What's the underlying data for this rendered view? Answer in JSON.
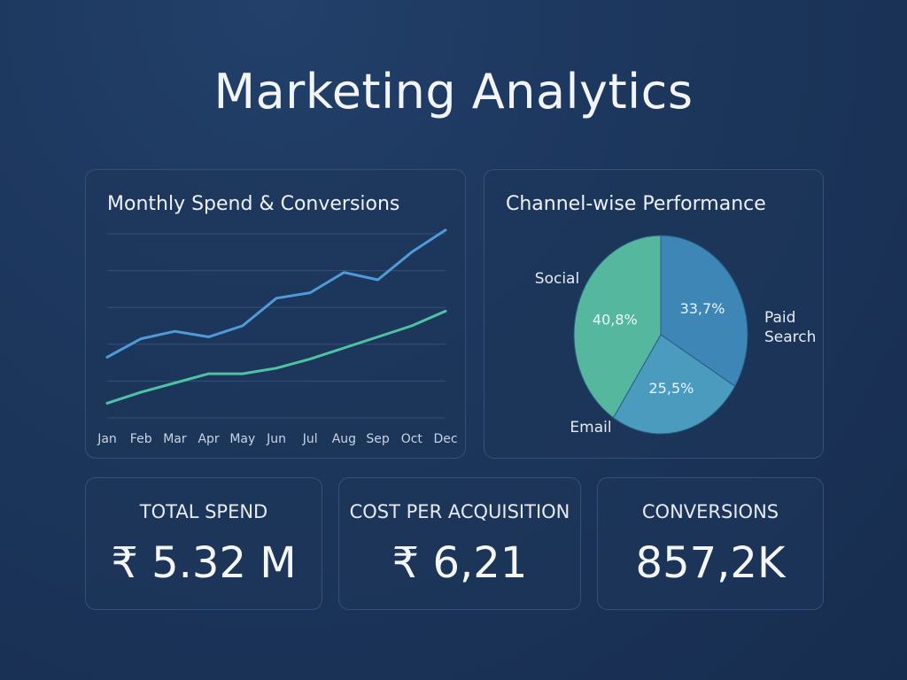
{
  "title": "Marketing Analytics",
  "colors": {
    "background": "#1c365c",
    "spend_line": "#4f9ad8",
    "conversions_line": "#4ec3a4",
    "pie_social": "#55b89e",
    "pie_paid_search": "#3d86b6",
    "pie_email": "#4a9bbe"
  },
  "kpis": [
    {
      "label": "TOTAL SPEND",
      "value": "₹ 5.32 M"
    },
    {
      "label": "COST PER ACQUISITION",
      "value": "₹ 6,21"
    },
    {
      "label": "CONVERSIONS",
      "value": "857,2K"
    }
  ],
  "chart_data": [
    {
      "type": "line",
      "title": "Monthly Spend & Conversions",
      "categories": [
        "Jan",
        "Feb",
        "Mar",
        "Apr",
        "May",
        "Jun",
        "Jul",
        "Aug",
        "Sep",
        "Oct",
        "Dec"
      ],
      "ylim": [
        0,
        5
      ],
      "grid": true,
      "series": [
        {
          "key": "spend",
          "values": [
            1.65,
            2.15,
            2.35,
            2.2,
            2.5,
            3.25,
            3.4,
            3.95,
            3.75,
            4.5,
            5.1
          ]
        },
        {
          "key": "conversions",
          "values": [
            0.4,
            0.7,
            0.95,
            1.2,
            1.2,
            1.35,
            1.6,
            1.9,
            2.2,
            2.5,
            2.9
          ]
        }
      ]
    },
    {
      "type": "pie",
      "title": "Channel-wise Performance",
      "slices": [
        {
          "label": "Paid\nSearch",
          "value": 33.7,
          "display": "33,7%",
          "color_key": "pie_paid_search"
        },
        {
          "label": "Email",
          "value": 25.5,
          "display": "25,5%",
          "color_key": "pie_email"
        },
        {
          "label": "Social",
          "value": 40.8,
          "display": "40,8%",
          "color_key": "pie_social"
        }
      ]
    }
  ]
}
